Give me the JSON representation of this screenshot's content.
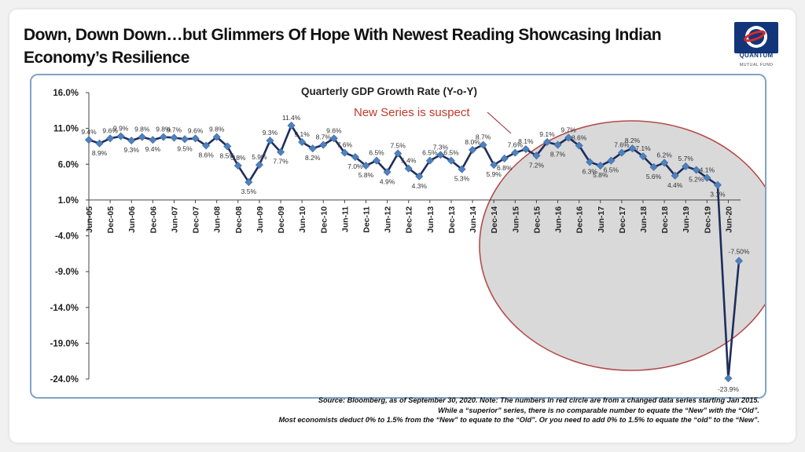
{
  "headline": "Down, Down Down…but Glimmers Of Hope With Newest Reading Showcasing Indian Economy’s Resilience",
  "logo": {
    "name": "QUANTUM",
    "sub": "MUTUAL FUND",
    "icon": "quantum-globe-logo"
  },
  "source_lines": [
    "Source: Bloomberg, as of September 30, 2020. Note: The numbers in red circle are from a changed data series starting Jan 2015.",
    "While a “superior” series, there is no comparable number to equate the “New” with the “Old”.",
    "Most economists deduct 0% to 1.5% from the “New” to equate to the “Old”. Or you need to add 0% to 1.5% to equate the “old” to the “New”."
  ],
  "colors": {
    "line": "#1f2d5c",
    "marker": "#4f81bd",
    "circle_fill": "#d9d9d9",
    "circle_stroke": "#b54a4a",
    "annotation": "#c0392b",
    "frame": "#7fa3c7"
  },
  "chart_data": {
    "type": "line",
    "title": "Quarterly GDP Growth Rate (Y-o-Y)",
    "annotation": "New Series is suspect",
    "ylim": [
      -24,
      16
    ],
    "yticks": [
      "16.0%",
      "11.0%",
      "6.0%",
      "1.0%",
      "-4.0%",
      "-9.0%",
      "-14.0%",
      "-19.0%",
      "-24.0%"
    ],
    "ytick_values": [
      16,
      11,
      6,
      1,
      -4,
      -9,
      -14,
      -19,
      -24
    ],
    "xtick_labels": [
      "Jun-05",
      "Dec-05",
      "Jun-06",
      "Dec-06",
      "Jun-07",
      "Dec-07",
      "Jun-08",
      "Dec-08",
      "Jun-09",
      "Dec-09",
      "Jun-10",
      "Dec-10",
      "Jun-11",
      "Dec-11",
      "Jun-12",
      "Dec-12",
      "Jun-13",
      "Dec-13",
      "Jun-14",
      "Dec-14",
      "Jun-15",
      "Dec-15",
      "Jun-16",
      "Dec-16",
      "Jun-17",
      "Dec-17",
      "Jun-18",
      "Dec-18",
      "Jun-19",
      "Dec-19",
      "Jun-20"
    ],
    "grid": false,
    "series": [
      {
        "values": [
          9.4,
          8.9,
          9.6,
          9.9,
          9.3,
          9.8,
          9.4,
          9.8,
          9.7,
          9.5,
          9.6,
          8.6,
          9.8,
          8.5,
          5.8,
          3.5,
          5.9,
          9.3,
          7.7,
          11.4,
          9.1,
          8.2,
          8.7,
          9.6,
          7.6,
          7.0,
          5.8,
          6.5,
          4.9,
          7.5,
          5.4,
          4.3,
          6.5,
          7.3,
          6.5,
          5.3,
          8.0,
          8.7,
          5.9,
          6.8,
          7.6,
          8.1,
          7.2,
          9.1,
          8.7,
          9.7,
          8.6,
          6.3,
          5.8,
          6.5,
          7.6,
          8.2,
          7.1,
          5.6,
          6.2,
          4.4,
          5.7,
          5.2,
          4.1,
          3.1,
          -23.9,
          -7.5
        ],
        "data_labels": [
          "9.4%",
          "8.9%",
          "9.6%",
          "9.9%",
          "9.3%",
          "9.8%",
          "9.4%",
          "9.8%",
          "9.7%",
          "9.5%",
          "9.6%",
          "8.6%",
          "9.8%",
          "8.5%",
          "5.8%",
          "3.5%",
          "5.9%",
          "9.3%",
          "7.7%",
          "11.4%",
          "9.1%",
          "8.2%",
          "8.7%",
          "9.6%",
          "7.6%",
          "7.0%",
          "5.8%",
          "6.5%",
          "4.9%",
          "7.5%",
          "5.4%",
          "4.3%",
          "6.5%",
          "7.3%",
          "6.5%",
          "5.3%",
          "8.0%",
          "8.7%",
          "5.9%",
          "6.8%",
          "7.6%",
          "8.1%",
          "7.2%",
          "9.1%",
          "8.7%",
          "9.7%",
          "8.6%",
          "6.3%",
          "5.8%",
          "6.5%",
          "7.6%",
          "8.2%",
          "7.1%",
          "5.6%",
          "6.2%",
          "4.4%",
          "5.7%",
          "5.2%",
          "4.1%",
          "3.1%",
          "-23.9%",
          "-7.50%"
        ]
      }
    ]
  }
}
